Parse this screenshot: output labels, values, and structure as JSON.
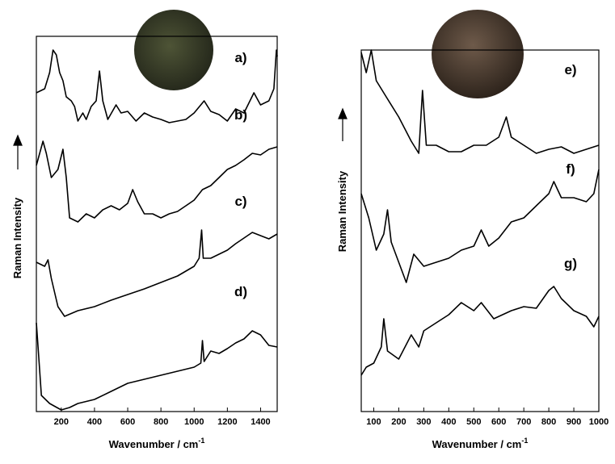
{
  "chart_data": [
    {
      "type": "line",
      "xlabel": "Wavenumber / cm",
      "xlabel_superscript": "-1",
      "ylabel": "Raman Intensity",
      "xlim": [
        50,
        1500
      ],
      "xticks": [
        200,
        400,
        600,
        800,
        1000,
        1200,
        1400
      ],
      "ylim": [
        0,
        465
      ],
      "color": "#000000",
      "series": [
        {
          "name": "a)",
          "x": [
            50,
            100,
            130,
            150,
            170,
            190,
            210,
            230,
            260,
            280,
            300,
            330,
            350,
            380,
            410,
            430,
            450,
            480,
            530,
            560,
            600,
            650,
            700,
            750,
            800,
            850,
            900,
            950,
            1000,
            1060,
            1100,
            1150,
            1200,
            1250,
            1300,
            1360,
            1400,
            1450,
            1480,
            1495,
            1500
          ],
          "values": [
            395,
            400,
            420,
            448,
            442,
            420,
            410,
            390,
            385,
            378,
            360,
            370,
            362,
            378,
            385,
            422,
            385,
            362,
            380,
            370,
            372,
            360,
            370,
            365,
            362,
            358,
            360,
            362,
            370,
            385,
            372,
            368,
            360,
            375,
            370,
            395,
            380,
            385,
            400,
            448,
            440
          ]
        },
        {
          "name": "b)",
          "x": [
            50,
            90,
            110,
            140,
            180,
            210,
            230,
            250,
            300,
            350,
            400,
            450,
            500,
            550,
            600,
            630,
            660,
            700,
            750,
            800,
            850,
            900,
            950,
            1000,
            1050,
            1100,
            1150,
            1200,
            1250,
            1300,
            1350,
            1400,
            1450,
            1500
          ],
          "values": [
            305,
            335,
            320,
            290,
            300,
            325,
            290,
            240,
            235,
            245,
            240,
            250,
            255,
            250,
            258,
            275,
            260,
            245,
            245,
            240,
            245,
            248,
            255,
            262,
            275,
            280,
            290,
            300,
            305,
            312,
            320,
            318,
            325,
            328
          ]
        },
        {
          "name": "c)",
          "x": [
            50,
            100,
            120,
            140,
            180,
            220,
            300,
            400,
            500,
            600,
            700,
            800,
            900,
            1000,
            1030,
            1045,
            1055,
            1100,
            1200,
            1250,
            1300,
            1350,
            1400,
            1450,
            1500
          ],
          "values": [
            185,
            180,
            188,
            165,
            130,
            118,
            125,
            130,
            138,
            145,
            152,
            160,
            168,
            180,
            190,
            225,
            190,
            190,
            200,
            208,
            215,
            222,
            218,
            214,
            220
          ]
        },
        {
          "name": "d)",
          "x": [
            50,
            60,
            80,
            130,
            200,
            250,
            300,
            400,
            500,
            600,
            700,
            800,
            900,
            1000,
            1040,
            1050,
            1060,
            1100,
            1150,
            1200,
            1250,
            1300,
            1350,
            1400,
            1450,
            1500
          ],
          "values": [
            110,
            80,
            20,
            10,
            2,
            5,
            10,
            15,
            25,
            35,
            40,
            45,
            50,
            55,
            60,
            88,
            62,
            75,
            72,
            78,
            85,
            90,
            100,
            95,
            82,
            80
          ]
        }
      ]
    },
    {
      "type": "line",
      "xlabel": "Wavenumber / cm",
      "xlabel_superscript": "-1",
      "ylabel": "Raman Intensity",
      "xlim": [
        50,
        1000
      ],
      "xticks": [
        100,
        200,
        300,
        400,
        500,
        600,
        700,
        800,
        900,
        1000
      ],
      "ylim": [
        0,
        448
      ],
      "color": "#000000",
      "series": [
        {
          "name": "e)",
          "x": [
            50,
            70,
            90,
            110,
            150,
            200,
            250,
            280,
            295,
            310,
            350,
            400,
            450,
            500,
            550,
            600,
            630,
            650,
            700,
            750,
            800,
            850,
            900,
            950,
            1000
          ],
          "values": [
            445,
            420,
            448,
            410,
            390,
            365,
            335,
            320,
            398,
            330,
            330,
            322,
            322,
            330,
            330,
            340,
            365,
            340,
            330,
            320,
            325,
            328,
            320,
            325,
            330
          ]
        },
        {
          "name": "f)",
          "x": [
            50,
            80,
            110,
            140,
            155,
            170,
            200,
            230,
            260,
            300,
            350,
            400,
            450,
            500,
            530,
            560,
            600,
            650,
            700,
            750,
            800,
            820,
            850,
            900,
            950,
            980,
            1000
          ],
          "values": [
            270,
            240,
            200,
            220,
            250,
            210,
            185,
            160,
            195,
            180,
            185,
            190,
            200,
            205,
            225,
            205,
            215,
            235,
            240,
            255,
            270,
            285,
            265,
            265,
            260,
            270,
            300
          ]
        },
        {
          "name": "g)",
          "x": [
            50,
            70,
            100,
            130,
            140,
            155,
            200,
            250,
            280,
            300,
            350,
            400,
            450,
            500,
            530,
            580,
            650,
            700,
            750,
            800,
            820,
            850,
            900,
            950,
            980,
            1000
          ],
          "values": [
            45,
            55,
            60,
            80,
            115,
            75,
            65,
            95,
            80,
            100,
            110,
            120,
            135,
            125,
            135,
            115,
            125,
            130,
            128,
            150,
            155,
            140,
            125,
            118,
            105,
            118
          ]
        }
      ]
    }
  ]
}
